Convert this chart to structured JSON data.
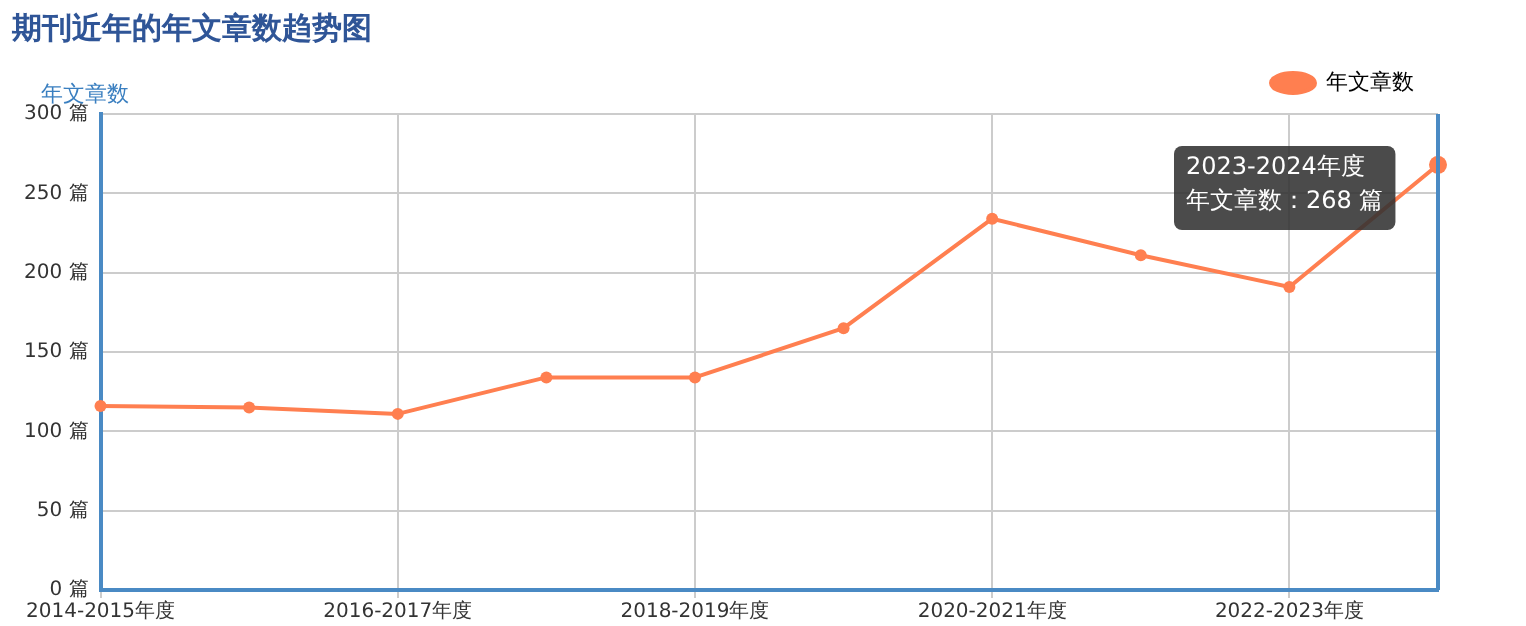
{
  "chart_data": {
    "type": "line",
    "title": "期刊近年的年文章数趋势图",
    "ylabel": "年文章数",
    "categories": [
      "2014-2015年度",
      null,
      "2016-2017年度",
      null,
      "2018-2019年度",
      null,
      "2020-2021年度",
      null,
      "2022-2023年度",
      null
    ],
    "series": [
      {
        "name": "年文章数",
        "color": "#ff7f50",
        "values": [
          116,
          115,
          111,
          134,
          134,
          165,
          234,
          211,
          191,
          268
        ]
      }
    ],
    "ylim": [
      0,
      300
    ],
    "yticks": [
      {
        "value": 0,
        "label": "0 篇"
      },
      {
        "value": 50,
        "label": "50 篇"
      },
      {
        "value": 100,
        "label": "100 篇"
      },
      {
        "value": 150,
        "label": "150 篇"
      },
      {
        "value": 200,
        "label": "200 篇"
      },
      {
        "value": 250,
        "label": "250 篇"
      },
      {
        "value": 300,
        "label": "300 篇"
      }
    ],
    "annotations": [
      "2023-2024年度",
      "年文章数：268 篇"
    ],
    "grid": true,
    "legend": "top right",
    "marker": "circle",
    "line_style": "solid"
  }
}
